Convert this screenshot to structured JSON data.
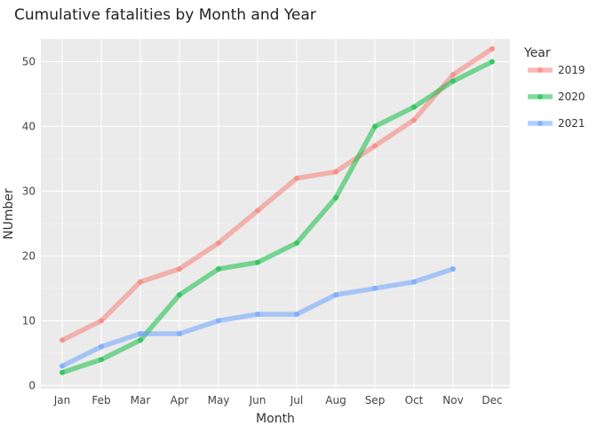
{
  "chart_data": {
    "type": "line",
    "title": "Cumulative fatalities by Month and Year",
    "xlabel": "Month",
    "ylabel": "NUmber",
    "categories": [
      "Jan",
      "Feb",
      "Mar",
      "Apr",
      "May",
      "Jun",
      "Jul",
      "Aug",
      "Sep",
      "Oct",
      "Nov",
      "Dec"
    ],
    "ylim": [
      -0.5,
      53.5
    ],
    "yticks": [
      0,
      10,
      20,
      30,
      40,
      50
    ],
    "grid": true,
    "legend": {
      "title": "Year",
      "placement": "right"
    },
    "series": [
      {
        "name": "2019",
        "color": "#F8766D",
        "values": [
          7,
          10,
          16,
          18,
          22,
          27,
          32,
          33,
          37,
          41,
          48,
          52
        ]
      },
      {
        "name": "2020",
        "color": "#00BA38",
        "values": [
          2,
          4,
          7,
          14,
          18,
          19,
          22,
          29,
          40,
          43,
          47,
          50
        ]
      },
      {
        "name": "2021",
        "color": "#619CFF",
        "values": [
          3,
          6,
          8,
          8,
          10,
          11,
          11,
          14,
          15,
          16,
          18,
          null
        ]
      }
    ]
  }
}
